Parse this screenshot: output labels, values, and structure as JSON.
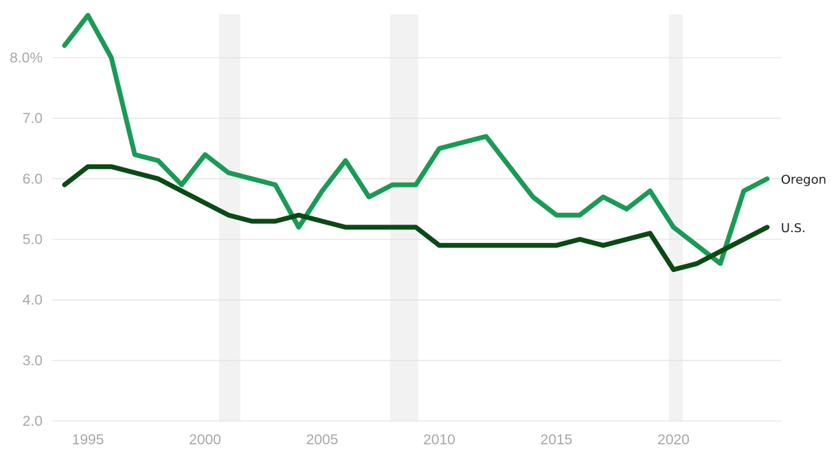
{
  "chart_data": {
    "type": "line",
    "title": "",
    "xlabel": "",
    "ylabel": "",
    "xlim": [
      1993.5,
      2025
    ],
    "ylim": [
      2.0,
      8.8
    ],
    "y_ticks": [
      {
        "value": 2.0,
        "label": "2.0"
      },
      {
        "value": 3.0,
        "label": "3.0"
      },
      {
        "value": 4.0,
        "label": "4.0"
      },
      {
        "value": 5.0,
        "label": "5.0"
      },
      {
        "value": 6.0,
        "label": "6.0"
      },
      {
        "value": 7.0,
        "label": "7.0"
      },
      {
        "value": 8.0,
        "label": "8.0%"
      }
    ],
    "x_ticks": [
      {
        "value": 1995,
        "label": "1995"
      },
      {
        "value": 2000,
        "label": "2000"
      },
      {
        "value": 2005,
        "label": "2005"
      },
      {
        "value": 2010,
        "label": "2010"
      },
      {
        "value": 2015,
        "label": "2015"
      },
      {
        "value": 2020,
        "label": "2020"
      }
    ],
    "recessions": [
      {
        "start": 2000.6,
        "end": 2001.5
      },
      {
        "start": 2007.9,
        "end": 2009.1
      },
      {
        "start": 2019.8,
        "end": 2020.4
      }
    ],
    "x": [
      1994,
      1995,
      1996,
      1997,
      1998,
      1999,
      2000,
      2001,
      2002,
      2003,
      2004,
      2005,
      2006,
      2007,
      2008,
      2009,
      2010,
      2011,
      2012,
      2013,
      2014,
      2015,
      2016,
      2017,
      2018,
      2019,
      2020,
      2021,
      2022,
      2023,
      2024
    ],
    "series": [
      {
        "name": "Oregon",
        "label": "Oregon",
        "color": "#1a9a55",
        "values": [
          8.2,
          8.7,
          8.0,
          6.4,
          6.3,
          5.9,
          6.4,
          6.1,
          6.0,
          5.9,
          5.2,
          5.8,
          6.3,
          5.7,
          5.9,
          5.9,
          6.5,
          6.6,
          6.7,
          6.2,
          5.7,
          5.4,
          5.4,
          5.7,
          5.5,
          5.8,
          5.2,
          4.9,
          4.6,
          5.8,
          6.0
        ]
      },
      {
        "name": "U.S.",
        "label": "U.S.",
        "color": "#0a4a14",
        "values": [
          5.9,
          6.2,
          6.2,
          6.1,
          6.0,
          5.8,
          5.6,
          5.4,
          5.3,
          5.3,
          5.4,
          5.3,
          5.2,
          5.2,
          5.2,
          5.2,
          4.9,
          4.9,
          4.9,
          4.9,
          4.9,
          4.9,
          5.0,
          4.9,
          5.0,
          5.1,
          4.5,
          4.6,
          4.8,
          5.0,
          5.2
        ]
      }
    ]
  }
}
